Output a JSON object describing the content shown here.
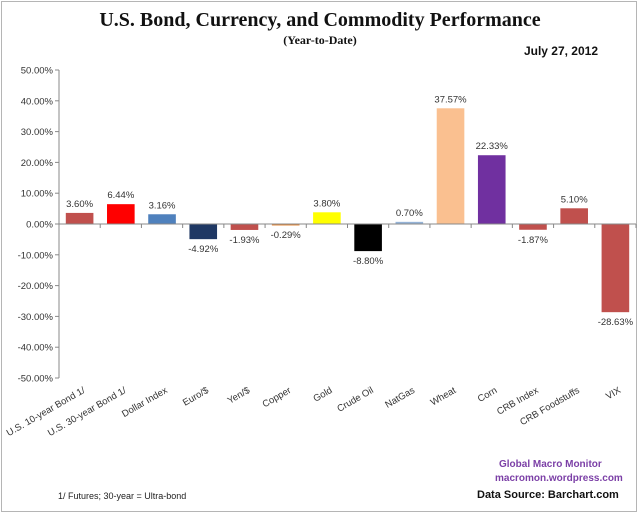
{
  "chart_data": {
    "type": "bar",
    "title": "U.S. Bond, Currency, and Commodity Performance",
    "subtitle": "(Year-to-Date)",
    "date": "July 27, 2012",
    "xlabel": "",
    "ylabel": "",
    "ylim": [
      -50,
      50
    ],
    "yticks": [
      50,
      40,
      30,
      20,
      10,
      0,
      -10,
      -20,
      -30,
      -40,
      -50
    ],
    "ytick_labels": [
      "50.00%",
      "40.00%",
      "30.00%",
      "20.00%",
      "10.00%",
      "0.00%",
      "-10.00%",
      "-20.00%",
      "-30.00%",
      "-40.00%",
      "-50.00%"
    ],
    "grid": false,
    "legend": "none",
    "categories": [
      "U.S. 10-year Bond 1/",
      "U.S. 30-year Bond 1/",
      "Dollar Index",
      "Euro/$",
      "Yen/$",
      "Copper",
      "Gold",
      "Crude Oil",
      "NatGas",
      "Wheat",
      "Corn",
      "CRB Index",
      "CRB Foodstuffs",
      "VIX"
    ],
    "values": [
      3.6,
      6.44,
      3.16,
      -4.92,
      -1.93,
      -0.29,
      3.8,
      -8.8,
      0.7,
      37.57,
      22.33,
      -1.87,
      5.1,
      -28.63
    ],
    "value_labels": [
      "3.60%",
      "6.44%",
      "3.16%",
      "-4.92%",
      "-1.93%",
      "-0.29%",
      "3.80%",
      "-8.80%",
      "0.70%",
      "37.57%",
      "22.33%",
      "-1.87%",
      "5.10%",
      "-28.63%"
    ],
    "colors": [
      "#c0504d",
      "#ff0000",
      "#4f81bd",
      "#1f3864",
      "#c0504d",
      "#e4883a",
      "#ffff00",
      "#000000",
      "#95b3d7",
      "#fac090",
      "#7030a0",
      "#c0504d",
      "#c0504d",
      "#c0504d"
    ]
  },
  "annotations": {
    "brand_name": "Global Macro Monitor",
    "brand_url": "macromon.wordpress.com",
    "footnote": "1/  Futures; 30-year = Ultra-bond",
    "source": "Data Source:  Barchart.com"
  }
}
